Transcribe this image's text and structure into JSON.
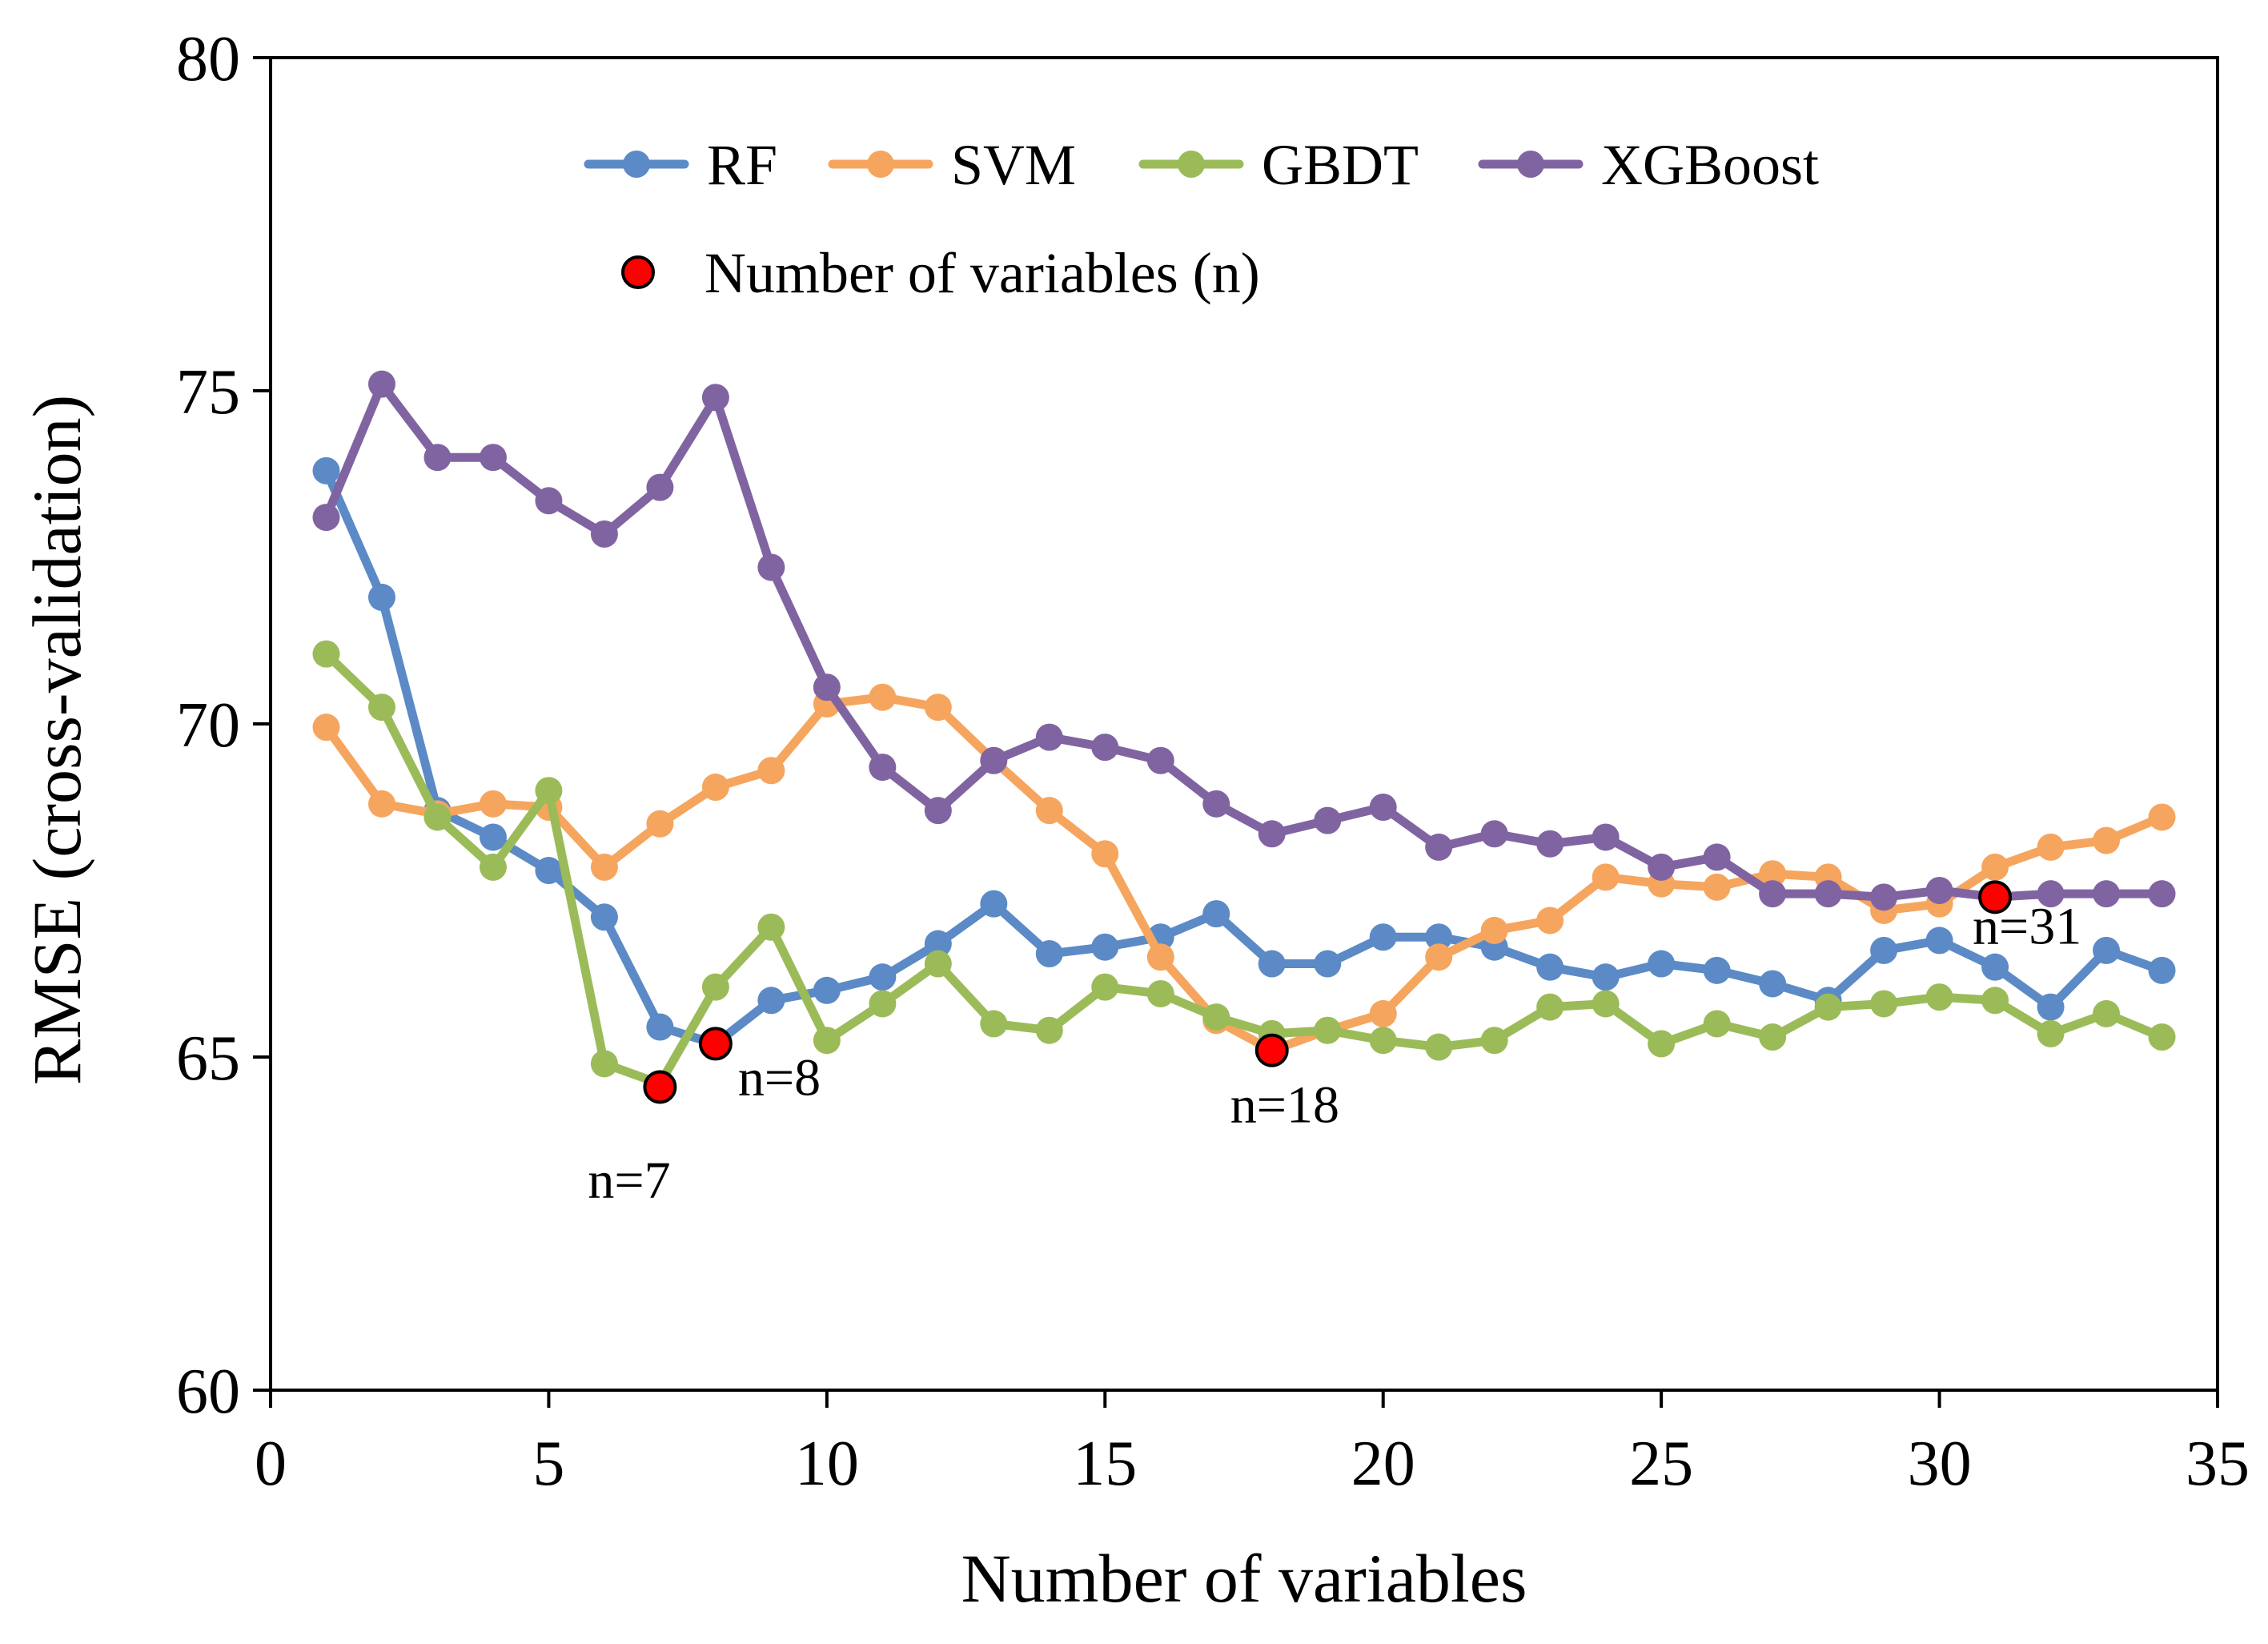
{
  "chart_data": {
    "type": "line",
    "title": "",
    "xlabel": "Number of variables",
    "ylabel": "RMSE (cross-validation)",
    "xlim": [
      0,
      35
    ],
    "ylim": [
      60,
      80
    ],
    "xticks": [
      0,
      5,
      10,
      15,
      20,
      25,
      30,
      35
    ],
    "yticks": [
      60,
      65,
      70,
      75,
      80
    ],
    "x": [
      1,
      2,
      3,
      4,
      5,
      6,
      7,
      8,
      9,
      10,
      11,
      12,
      13,
      14,
      15,
      16,
      17,
      18,
      19,
      20,
      21,
      22,
      23,
      24,
      25,
      26,
      27,
      28,
      29,
      30,
      31,
      32,
      33,
      34
    ],
    "series": [
      {
        "name": "RF",
        "color": "#5b8ac6",
        "values": [
          73.8,
          71.9,
          68.7,
          68.3,
          67.8,
          67.1,
          65.45,
          65.2,
          65.85,
          66.0,
          66.2,
          66.7,
          67.3,
          66.55,
          66.65,
          66.8,
          67.15,
          66.4,
          66.4,
          66.8,
          66.8,
          66.65,
          66.35,
          66.2,
          66.4,
          66.3,
          66.1,
          65.85,
          66.6,
          66.75,
          66.35,
          65.75,
          66.6,
          66.3
        ]
      },
      {
        "name": "SVM",
        "color": "#f6a55e",
        "values": [
          69.95,
          68.8,
          68.65,
          68.8,
          68.75,
          67.85,
          68.5,
          69.05,
          69.3,
          70.3,
          70.4,
          70.25,
          69.45,
          68.7,
          68.05,
          66.5,
          65.55,
          65.1,
          65.4,
          65.65,
          66.5,
          66.9,
          67.05,
          67.7,
          67.6,
          67.55,
          67.75,
          67.7,
          67.2,
          67.3,
          67.85,
          68.15,
          68.25,
          68.6
        ]
      },
      {
        "name": "GBDT",
        "color": "#9bbb59",
        "values": [
          71.05,
          70.25,
          68.6,
          67.85,
          69.0,
          64.9,
          64.6,
          66.05,
          66.95,
          65.25,
          65.8,
          66.4,
          65.5,
          65.4,
          66.05,
          65.95,
          65.6,
          65.35,
          65.4,
          65.25,
          65.15,
          65.25,
          65.75,
          65.8,
          65.2,
          65.5,
          65.3,
          65.75,
          65.8,
          65.9,
          65.85,
          65.35,
          65.65,
          65.3
        ]
      },
      {
        "name": "XGBoost",
        "color": "#8064a2",
        "values": [
          73.1,
          75.1,
          74.0,
          74.0,
          73.35,
          72.85,
          73.55,
          74.9,
          72.35,
          70.55,
          69.35,
          68.7,
          69.45,
          69.8,
          69.65,
          69.45,
          68.8,
          68.35,
          68.55,
          68.75,
          68.15,
          68.35,
          68.2,
          68.3,
          67.85,
          68.0,
          67.45,
          67.45,
          67.4,
          67.5,
          67.4,
          67.45,
          67.45,
          67.45
        ]
      }
    ],
    "highlight_points": {
      "legend_label": "Number of variables (n)",
      "color": "#ff0000",
      "points": [
        {
          "x": 7,
          "y": 64.55,
          "label": "n=7"
        },
        {
          "x": 8,
          "y": 65.2,
          "label": "n=8"
        },
        {
          "x": 18,
          "y": 65.1,
          "label": "n=18"
        },
        {
          "x": 31,
          "y": 67.4,
          "label": "n=31"
        }
      ]
    },
    "legend_position": "top-center",
    "grid": false
  }
}
